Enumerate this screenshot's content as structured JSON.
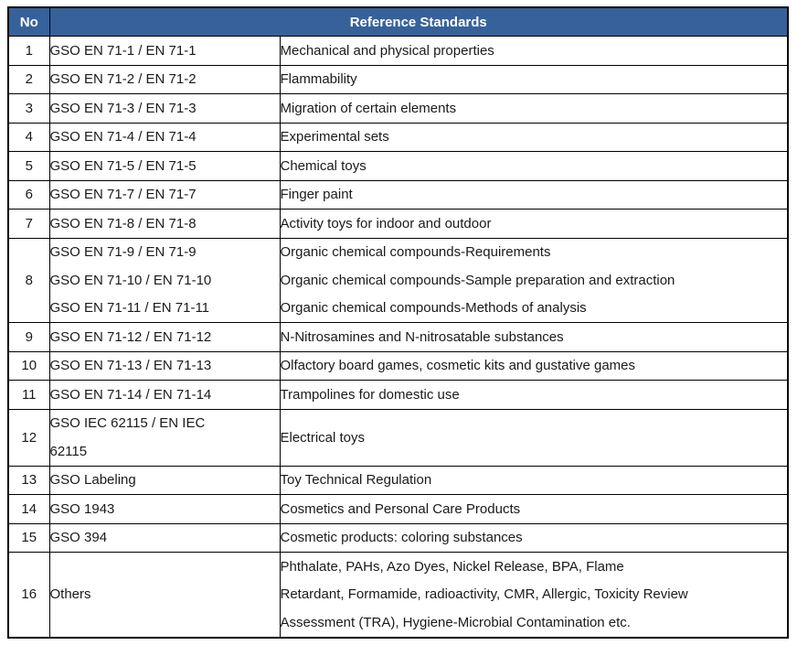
{
  "table": {
    "header": {
      "no_label": "No",
      "title": "Reference Standards"
    },
    "colors": {
      "header_bg": "#37619A",
      "header_text": "#FFFFFF",
      "border": "#000000",
      "text": "#1a1a1a"
    },
    "rows": [
      {
        "no": "1",
        "standards": [
          "GSO EN 71-1 / EN 71-1"
        ],
        "descriptions": [
          "Mechanical and physical properties"
        ]
      },
      {
        "no": "2",
        "standards": [
          "GSO EN 71-2 / EN 71-2"
        ],
        "descriptions": [
          "Flammability"
        ]
      },
      {
        "no": "3",
        "standards": [
          "GSO EN 71-3 / EN 71-3"
        ],
        "descriptions": [
          "Migration of certain elements"
        ]
      },
      {
        "no": "4",
        "standards": [
          "GSO EN 71-4 / EN 71-4"
        ],
        "descriptions": [
          "Experimental sets"
        ]
      },
      {
        "no": "5",
        "standards": [
          "GSO EN 71-5 / EN 71-5"
        ],
        "descriptions": [
          "Chemical toys"
        ]
      },
      {
        "no": "6",
        "standards": [
          "GSO EN 71-7 / EN 71-7"
        ],
        "descriptions": [
          "Finger paint"
        ]
      },
      {
        "no": "7",
        "standards": [
          "GSO EN 71-8 / EN 71-8"
        ],
        "descriptions": [
          "Activity toys for indoor and outdoor"
        ]
      },
      {
        "no": "8",
        "standards": [
          "GSO EN 71-9 / EN 71-9",
          "GSO EN 71-10 / EN 71-10",
          "GSO EN 71-11 / EN 71-11"
        ],
        "descriptions": [
          "Organic chemical compounds-Requirements",
          "Organic chemical compounds-Sample preparation and extraction",
          "Organic chemical compounds-Methods of analysis"
        ]
      },
      {
        "no": "9",
        "standards": [
          "GSO EN 71-12 / EN 71-12"
        ],
        "descriptions": [
          "N-Nitrosamines and N-nitrosatable substances"
        ]
      },
      {
        "no": "10",
        "standards": [
          "GSO EN 71-13 / EN 71-13"
        ],
        "descriptions": [
          "Olfactory board games, cosmetic kits and gustative games"
        ]
      },
      {
        "no": "11",
        "standards": [
          "GSO EN 71-14 / EN 71-14"
        ],
        "descriptions": [
          "Trampolines for domestic use"
        ]
      },
      {
        "no": "12",
        "standards": [
          "GSO IEC 62115 / EN IEC",
          "62115"
        ],
        "descriptions": [
          "Electrical toys"
        ]
      },
      {
        "no": "13",
        "standards": [
          "GSO Labeling"
        ],
        "descriptions": [
          "Toy Technical Regulation"
        ]
      },
      {
        "no": "14",
        "standards": [
          "GSO 1943"
        ],
        "descriptions": [
          "Cosmetics and Personal Care Products"
        ]
      },
      {
        "no": "15",
        "standards": [
          "GSO 394"
        ],
        "descriptions": [
          "Cosmetic products: coloring substances"
        ]
      },
      {
        "no": "16",
        "standards": [
          "Others"
        ],
        "descriptions": [
          "Phthalate, PAHs, Azo Dyes, Nickel Release, BPA, Flame",
          "Retardant, Formamide, radioactivity, CMR, Allergic, Toxicity Review",
          "Assessment (TRA), Hygiene-Microbial Contamination etc."
        ]
      }
    ]
  }
}
